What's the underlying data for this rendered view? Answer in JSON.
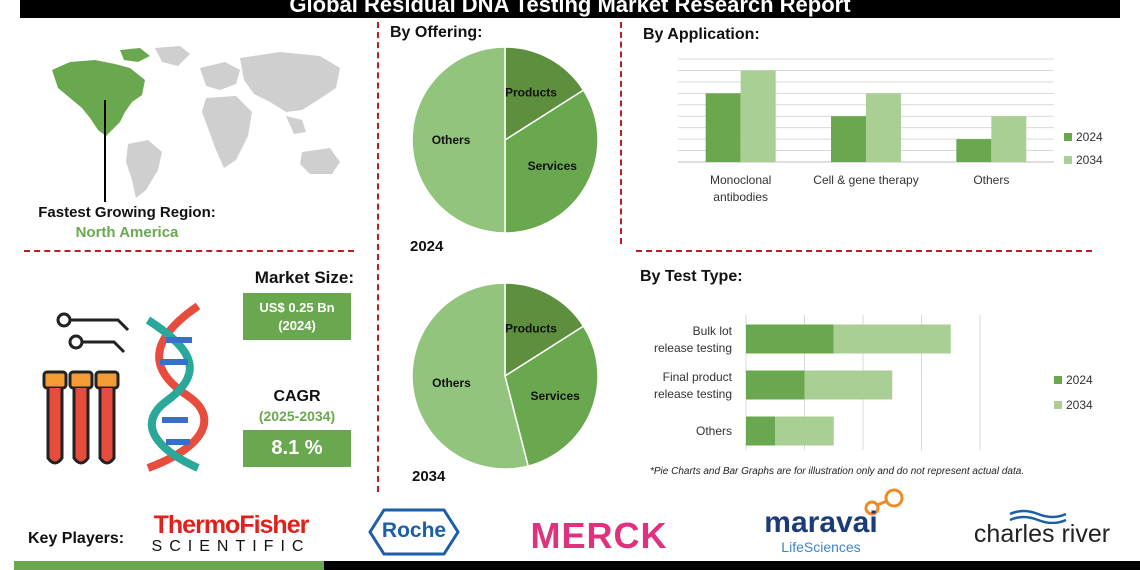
{
  "title": "Global Residual DNA Testing Market Research Report",
  "region": {
    "label": "Fastest Growing Region:",
    "value": "North America",
    "map_icon": "world-map-icon"
  },
  "market_size": {
    "label": "Market Size:",
    "value": "US$ 0.25 Bn",
    "year": "(2024)"
  },
  "cagr": {
    "label": "CAGR",
    "period": "(2025-2034)",
    "value": "8.1 %"
  },
  "illustration_icon": "dna-test-tubes-icon",
  "colors": {
    "dark_green": "#5e8f3e",
    "mid_green": "#6aa84f",
    "light_green": "#93c47d",
    "pale_green": "#a9cf94",
    "accent_red": "#b22222"
  },
  "chart_data": [
    {
      "type": "pie",
      "title": "By Offering:",
      "year_label": "2024",
      "labels": [
        "Products",
        "Services",
        "Others"
      ],
      "values": [
        16,
        34,
        50
      ]
    },
    {
      "type": "pie",
      "year_label": "2034",
      "labels": [
        "Products",
        "Services",
        "Others"
      ],
      "values": [
        16,
        30,
        54
      ]
    },
    {
      "type": "bar",
      "title": "By Application:",
      "orientation": "vertical",
      "categories": [
        "Monoclonal antibodies",
        "Cell & gene therapy",
        "Others"
      ],
      "series": [
        {
          "name": "2024",
          "values": [
            3.0,
            2.0,
            1.0
          ]
        },
        {
          "name": "2034",
          "values": [
            4.0,
            3.0,
            2.0
          ]
        }
      ],
      "ylim": [
        0,
        4.5
      ],
      "grid": true,
      "legend": "right"
    },
    {
      "type": "bar",
      "title": "By Test Type:",
      "orientation": "horizontal",
      "stacked": true,
      "categories": [
        "Bulk lot release testing",
        "Final product release testing",
        "Others"
      ],
      "series": [
        {
          "name": "2024",
          "values": [
            1.5,
            1.0,
            0.5
          ]
        },
        {
          "name": "2034",
          "values": [
            2.0,
            1.5,
            1.0
          ]
        }
      ],
      "xlim": [
        0,
        4
      ],
      "grid": true,
      "legend": "right"
    }
  ],
  "note": "*Pie Charts and Bar Graphs are for illustration only and do not represent actual data.",
  "key_players": {
    "label": "Key Players:",
    "thermo": {
      "line1": "ThermoFisher",
      "line2": "SCIENTIFIC"
    },
    "roche": "Roche",
    "merck": "MERCK",
    "maravai": {
      "line1": "maravai",
      "line2": "LifeSciences"
    },
    "charles_river": "charles river"
  }
}
